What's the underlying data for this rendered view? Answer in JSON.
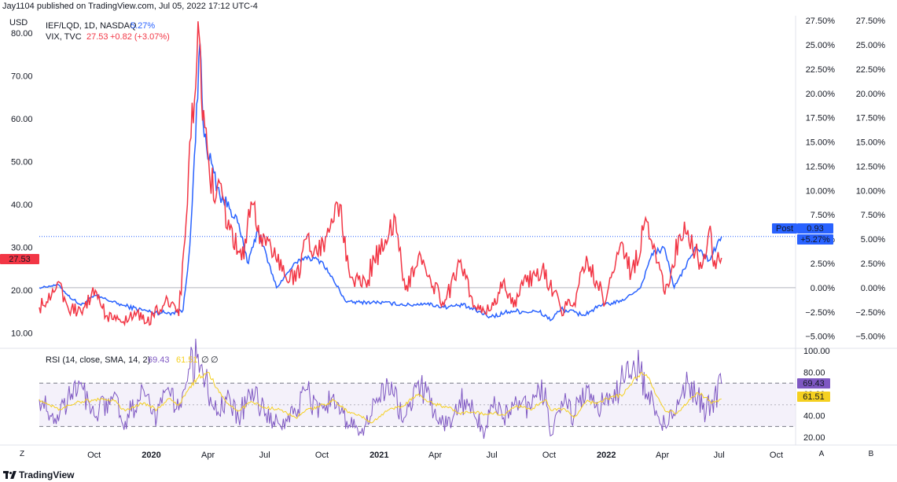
{
  "header": {
    "attribution": "Jay1104 published on TradingView.com, Jul 05, 2022 17:12 UTC-4"
  },
  "chart_data": [
    {
      "type": "line",
      "currency_label": "USD",
      "series": [
        {
          "name": "IEF/LQD, 1D, NASDAQ",
          "last_text": "5.27%",
          "color": "#2962ff",
          "axis": "right-percent"
        },
        {
          "name": "VIX, TVC",
          "last_text": "27.53",
          "change_text": "+0.82 (+3.07%)",
          "color": "#f23645",
          "axis": "left-price"
        }
      ],
      "left_axis": {
        "ticks": [
          "80.00",
          "70.00",
          "60.00",
          "50.00",
          "40.00",
          "30.00",
          "20.00",
          "10.00"
        ],
        "range": [
          7,
          84
        ]
      },
      "right_axis_1": {
        "ticks": [
          "27.50%",
          "25.00%",
          "22.50%",
          "20.00%",
          "17.50%",
          "15.00%",
          "12.50%",
          "10.00%",
          "7.50%",
          "5.00%",
          "2.50%",
          "0.00%",
          "−2.50%",
          "−5.00%"
        ]
      },
      "right_axis_2": {
        "ticks": [
          "27.50%",
          "25.00%",
          "22.50%",
          "20.00%",
          "17.50%",
          "15.00%",
          "12.50%",
          "10.00%",
          "7.50%",
          "5.00%",
          "2.50%",
          "0.00%",
          "−2.50%",
          "−5.00%"
        ]
      },
      "percent_range": [
        -6,
        28
      ],
      "x_ticks": [
        {
          "label": "Oct",
          "bold": false
        },
        {
          "label": "2020",
          "bold": true
        },
        {
          "label": "Apr",
          "bold": false
        },
        {
          "label": "Jul",
          "bold": false
        },
        {
          "label": "Oct",
          "bold": false
        },
        {
          "label": "2021",
          "bold": true
        },
        {
          "label": "Apr",
          "bold": false
        },
        {
          "label": "Jul",
          "bold": false
        },
        {
          "label": "Oct",
          "bold": false
        },
        {
          "label": "2022",
          "bold": true
        },
        {
          "label": "Apr",
          "bold": false
        },
        {
          "label": "Jul",
          "bold": false
        },
        {
          "label": "Oct",
          "bold": false
        }
      ],
      "vix_points": [
        [
          "2019-07-05",
          16
        ],
        [
          "2019-08-05",
          22
        ],
        [
          "2019-08-20",
          16
        ],
        [
          "2019-09-10",
          15
        ],
        [
          "2019-10-03",
          20
        ],
        [
          "2019-10-20",
          14
        ],
        [
          "2019-11-15",
          12.5
        ],
        [
          "2019-12-05",
          15
        ],
        [
          "2019-12-25",
          12.5
        ],
        [
          "2020-01-27",
          18
        ],
        [
          "2020-02-14",
          14
        ],
        [
          "2020-02-28",
          40
        ],
        [
          "2020-03-16",
          82.7
        ],
        [
          "2020-03-25",
          62
        ],
        [
          "2020-04-10",
          41
        ],
        [
          "2020-04-20",
          45
        ],
        [
          "2020-05-06",
          34
        ],
        [
          "2020-05-25",
          27
        ],
        [
          "2020-06-11",
          40
        ],
        [
          "2020-06-25",
          33
        ],
        [
          "2020-07-15",
          28
        ],
        [
          "2020-08-20",
          22
        ],
        [
          "2020-09-08",
          33
        ],
        [
          "2020-09-25",
          28
        ],
        [
          "2020-10-30",
          40
        ],
        [
          "2020-11-15",
          23
        ],
        [
          "2020-12-10",
          22
        ],
        [
          "2021-01-27",
          37
        ],
        [
          "2021-02-12",
          20
        ],
        [
          "2021-03-05",
          28
        ],
        [
          "2021-04-15",
          16.5
        ],
        [
          "2021-05-12",
          27
        ],
        [
          "2021-06-05",
          16
        ],
        [
          "2021-06-30",
          15.5
        ],
        [
          "2021-07-19",
          22
        ],
        [
          "2021-08-05",
          16
        ],
        [
          "2021-08-20",
          21
        ],
        [
          "2021-09-20",
          25
        ],
        [
          "2021-10-20",
          15.5
        ],
        [
          "2021-11-10",
          17
        ],
        [
          "2021-11-30",
          28
        ],
        [
          "2021-12-30",
          17
        ],
        [
          "2022-01-24",
          31
        ],
        [
          "2022-02-10",
          24
        ],
        [
          "2022-03-07",
          36
        ],
        [
          "2022-04-05",
          19
        ],
        [
          "2022-04-29",
          33
        ],
        [
          "2022-05-12",
          34
        ],
        [
          "2022-06-03",
          25
        ],
        [
          "2022-06-15",
          34
        ],
        [
          "2022-06-24",
          27
        ],
        [
          "2022-07-05",
          27.53
        ]
      ],
      "ief_lqd_points": [
        [
          "2019-07-05",
          0.0
        ],
        [
          "2019-08-05",
          0.3
        ],
        [
          "2019-08-20",
          -0.8
        ],
        [
          "2019-09-10",
          -1.8
        ],
        [
          "2019-10-03",
          -0.8
        ],
        [
          "2019-11-15",
          -1.8
        ],
        [
          "2019-12-31",
          -2.5
        ],
        [
          "2020-01-30",
          -2.6
        ],
        [
          "2020-02-21",
          -2.3
        ],
        [
          "2020-03-01",
          3.0
        ],
        [
          "2020-03-12",
          15.0
        ],
        [
          "2020-03-19",
          25.2
        ],
        [
          "2020-03-26",
          15.5
        ],
        [
          "2020-04-20",
          9.5
        ],
        [
          "2020-05-15",
          7.5
        ],
        [
          "2020-06-05",
          2.5
        ],
        [
          "2020-06-20",
          6.0
        ],
        [
          "2020-07-20",
          0.0
        ],
        [
          "2020-08-15",
          2.2
        ],
        [
          "2020-09-05",
          3.2
        ],
        [
          "2020-10-01",
          2.7
        ],
        [
          "2020-11-10",
          -1.5
        ],
        [
          "2020-12-31",
          -1.5
        ],
        [
          "2021-02-20",
          -1.8
        ],
        [
          "2021-03-15",
          -1.6
        ],
        [
          "2021-04-15",
          -2.0
        ],
        [
          "2021-05-15",
          -1.8
        ],
        [
          "2021-06-30",
          -3.0
        ],
        [
          "2021-08-01",
          -2.4
        ],
        [
          "2021-09-15",
          -2.5
        ],
        [
          "2021-10-05",
          -3.3
        ],
        [
          "2021-10-20",
          -2.2
        ],
        [
          "2021-11-25",
          -2.8
        ],
        [
          "2021-12-25",
          -1.8
        ],
        [
          "2022-01-25",
          -1.4
        ],
        [
          "2022-02-25",
          0.0
        ],
        [
          "2022-03-15",
          3.5
        ],
        [
          "2022-04-05",
          4.0
        ],
        [
          "2022-04-20",
          0.0
        ],
        [
          "2022-05-25",
          4.2
        ],
        [
          "2022-06-15",
          2.8
        ],
        [
          "2022-07-05",
          5.27
        ]
      ],
      "blue_dotted_level_percent": 5.27,
      "post_badge": {
        "label": "Post",
        "value": "0.93",
        "percent": "+5.27%"
      },
      "vix_badge": "27.53",
      "colors": {
        "blue": "#2962ff",
        "red": "#f23645",
        "rsi": "#7e57c2",
        "rsi_sma": "#f5d020",
        "grid": "#e0e3eb"
      }
    },
    {
      "type": "line",
      "title": "RSI (14, close, SMA, 14, 2)",
      "rsi_value": "69.43",
      "sma_value": "61.51",
      "extra_symbols": [
        "∅",
        "∅"
      ],
      "y_ticks": [
        "100.00",
        "80.00",
        "60.00",
        "40.00",
        "20.00"
      ],
      "range": [
        15,
        100
      ],
      "band": [
        30,
        70
      ],
      "rsi_points": [
        [
          "2019-07-05",
          55
        ],
        [
          "2019-08-05",
          35
        ],
        [
          "2019-08-20",
          58
        ],
        [
          "2019-09-12",
          66
        ],
        [
          "2019-10-01",
          40
        ],
        [
          "2019-11-01",
          58
        ],
        [
          "2019-11-20",
          35
        ],
        [
          "2019-12-20",
          63
        ],
        [
          "2020-01-10",
          38
        ],
        [
          "2020-01-28",
          66
        ],
        [
          "2020-02-14",
          45
        ],
        [
          "2020-03-01",
          83
        ],
        [
          "2020-03-16",
          97
        ],
        [
          "2020-04-01",
          60
        ],
        [
          "2020-04-15",
          40
        ],
        [
          "2020-05-01",
          55
        ],
        [
          "2020-05-20",
          38
        ],
        [
          "2020-06-11",
          65
        ],
        [
          "2020-07-01",
          40
        ],
        [
          "2020-07-25",
          32
        ],
        [
          "2020-08-20",
          42
        ],
        [
          "2020-09-08",
          64
        ],
        [
          "2020-09-25",
          38
        ],
        [
          "2020-10-20",
          60
        ],
        [
          "2020-11-10",
          35
        ],
        [
          "2020-12-01",
          25
        ],
        [
          "2020-12-20",
          40
        ],
        [
          "2021-01-15",
          70
        ],
        [
          "2021-02-10",
          38
        ],
        [
          "2021-03-05",
          72
        ],
        [
          "2021-03-30",
          42
        ],
        [
          "2021-04-20",
          30
        ],
        [
          "2021-05-10",
          55
        ],
        [
          "2021-06-01",
          45
        ],
        [
          "2021-06-20",
          25
        ],
        [
          "2021-07-05",
          58
        ],
        [
          "2021-07-20",
          38
        ],
        [
          "2021-08-10",
          52
        ],
        [
          "2021-09-01",
          46
        ],
        [
          "2021-09-25",
          66
        ],
        [
          "2021-10-05",
          22
        ],
        [
          "2021-10-25",
          52
        ],
        [
          "2021-11-10",
          40
        ],
        [
          "2021-11-30",
          68
        ],
        [
          "2021-12-15",
          48
        ],
        [
          "2022-01-10",
          56
        ],
        [
          "2022-01-28",
          74
        ],
        [
          "2022-02-12",
          84
        ],
        [
          "2022-02-25",
          80
        ],
        [
          "2022-03-10",
          62
        ],
        [
          "2022-03-20",
          40
        ],
        [
          "2022-04-05",
          32
        ],
        [
          "2022-04-25",
          55
        ],
        [
          "2022-05-12",
          70
        ],
        [
          "2022-05-28",
          58
        ],
        [
          "2022-06-10",
          42
        ],
        [
          "2022-06-20",
          55
        ],
        [
          "2022-07-05",
          69.43
        ]
      ]
    }
  ],
  "corner_labels": {
    "z": "Z",
    "a": "A",
    "b": "B"
  },
  "brand": {
    "name": "TradingView"
  }
}
